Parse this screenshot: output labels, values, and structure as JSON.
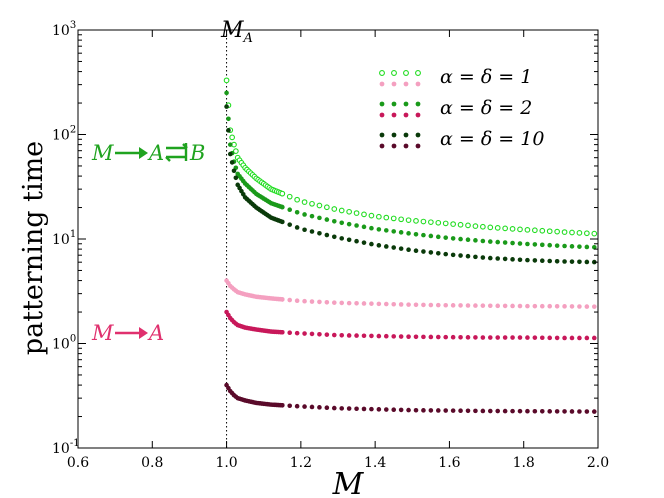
{
  "chart_data": {
    "type": "scatter",
    "xlabel": "M",
    "ylabel": "patterning  time",
    "xlim": [
      0.6,
      2.0
    ],
    "ylim_log10": [
      -1,
      3
    ],
    "y_scale": "log",
    "x_ticks": [
      "0.6",
      "0.8",
      "1.0",
      "1.2",
      "1.4",
      "1.6",
      "1.8",
      "2.0"
    ],
    "y_tick_bases": [
      "10",
      "10",
      "10",
      "10",
      "10"
    ],
    "y_tick_exponents": [
      "-1",
      "0",
      "1",
      "2",
      "3"
    ],
    "vline": {
      "x": 1.0,
      "label_main": "M",
      "label_sub": "A"
    },
    "annotations": {
      "upper": {
        "M": "M",
        "A": "A",
        "B": "B",
        "color": "#1fa31f"
      },
      "lower": {
        "M": "M",
        "A": "A",
        "color": "#e0306e"
      }
    },
    "legend": [
      {
        "label": "α = δ = 1",
        "color": "#22dd22",
        "hollow": true
      },
      {
        "label": "α = δ = 2",
        "color": "#1a9a1a",
        "hollow": false
      },
      {
        "label": "α = δ = 10",
        "color": "#0a3a0a",
        "hollow": false
      }
    ],
    "legend_magenta": [
      "#f4a0c0",
      "#c8185a",
      "#5a0a2a"
    ],
    "series": [
      {
        "name": "α = δ = 1",
        "group": "green",
        "color": "#22dd22",
        "hollow": true,
        "x": [
          1.0,
          1.01,
          1.02,
          1.03,
          1.05,
          1.08,
          1.12,
          1.2,
          1.3,
          1.4,
          1.5,
          1.6,
          1.7,
          1.8,
          1.9,
          2.0
        ],
        "y": [
          330,
          110,
          80,
          60,
          48,
          38,
          30,
          23,
          19,
          16.5,
          15,
          14,
          13,
          12.3,
          11.7,
          11.2
        ]
      },
      {
        "name": "α = δ = 2",
        "group": "green",
        "color": "#1a9a1a",
        "hollow": false,
        "x": [
          1.0,
          1.01,
          1.02,
          1.03,
          1.05,
          1.08,
          1.12,
          1.2,
          1.3,
          1.4,
          1.5,
          1.6,
          1.7,
          1.8,
          1.9,
          2.0
        ],
        "y": [
          250,
          80,
          55,
          42,
          34,
          27,
          22,
          17.5,
          14.5,
          12.5,
          11.2,
          10.2,
          9.5,
          9.0,
          8.6,
          8.3
        ]
      },
      {
        "name": "α = δ = 10",
        "group": "green",
        "color": "#0a3a0a",
        "hollow": false,
        "x": [
          1.0,
          1.01,
          1.02,
          1.03,
          1.05,
          1.08,
          1.12,
          1.2,
          1.3,
          1.4,
          1.5,
          1.6,
          1.7,
          1.8,
          1.9,
          2.0
        ],
        "y": [
          185,
          65,
          45,
          33,
          25,
          20,
          16,
          12.5,
          10.3,
          8.8,
          7.8,
          7.1,
          6.6,
          6.3,
          6.1,
          6.0
        ]
      },
      {
        "name": "α = δ = 1",
        "group": "magenta",
        "color": "#f4a0c0",
        "hollow": false,
        "x": [
          1.0,
          1.01,
          1.02,
          1.03,
          1.05,
          1.08,
          1.12,
          1.2,
          1.3,
          1.4,
          1.5,
          1.6,
          1.7,
          1.8,
          1.9,
          2.0
        ],
        "y": [
          4.0,
          3.55,
          3.3,
          3.1,
          2.95,
          2.8,
          2.7,
          2.55,
          2.45,
          2.4,
          2.35,
          2.32,
          2.3,
          2.28,
          2.27,
          2.25
        ]
      },
      {
        "name": "α = δ = 2",
        "group": "magenta",
        "color": "#c8185a",
        "hollow": false,
        "x": [
          1.0,
          1.01,
          1.02,
          1.03,
          1.05,
          1.08,
          1.12,
          1.2,
          1.3,
          1.4,
          1.5,
          1.6,
          1.7,
          1.8,
          1.9,
          2.0
        ],
        "y": [
          2.0,
          1.75,
          1.6,
          1.5,
          1.42,
          1.36,
          1.3,
          1.25,
          1.2,
          1.18,
          1.16,
          1.15,
          1.14,
          1.14,
          1.13,
          1.13
        ]
      },
      {
        "name": "α = δ = 10",
        "group": "magenta",
        "color": "#5a0a2a",
        "hollow": false,
        "x": [
          1.0,
          1.01,
          1.02,
          1.03,
          1.05,
          1.08,
          1.12,
          1.2,
          1.3,
          1.4,
          1.5,
          1.6,
          1.7,
          1.8,
          1.9,
          2.0
        ],
        "y": [
          0.4,
          0.35,
          0.32,
          0.3,
          0.285,
          0.27,
          0.26,
          0.25,
          0.24,
          0.235,
          0.23,
          0.228,
          0.226,
          0.225,
          0.224,
          0.223
        ]
      }
    ]
  }
}
